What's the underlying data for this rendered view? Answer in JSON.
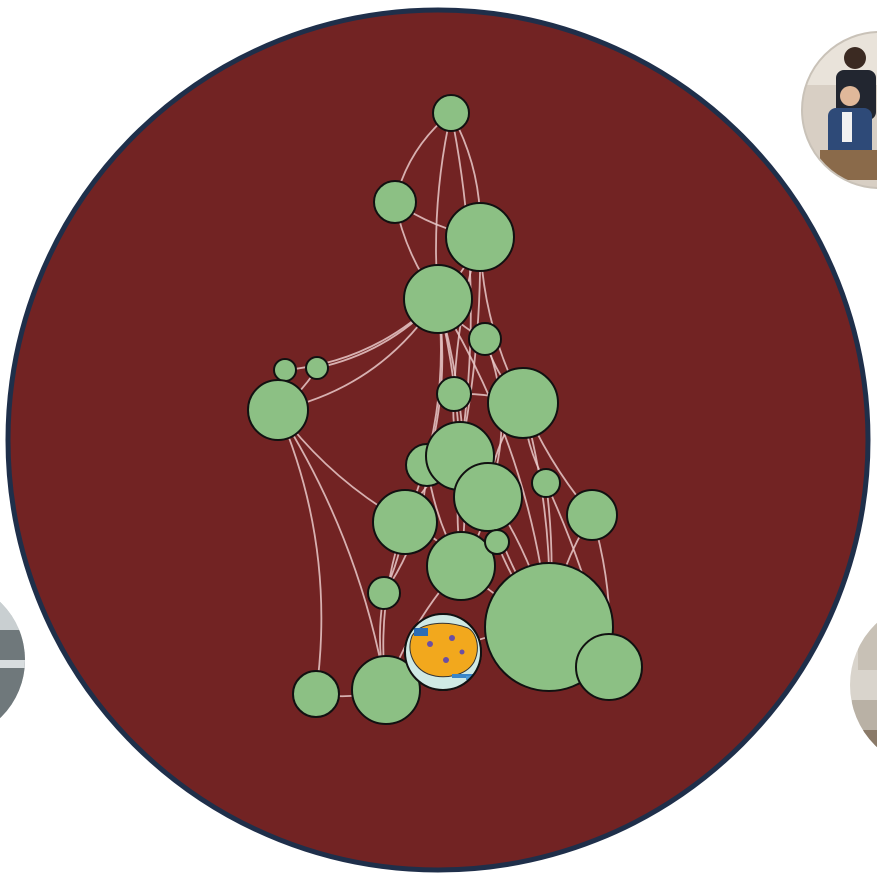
{
  "colors": {
    "background": "#ffffff",
    "main_disc_fill": "#722323",
    "main_disc_stroke": "#1f2f4a",
    "node_fill": "#8cc084",
    "node_stroke": "#111111",
    "edge_color": "#e9c9c9",
    "map_node_fill": "#f2a81d",
    "photo_frame_bg": "#cfc6bb"
  },
  "side_photos": [
    {
      "id": "photo-top-right",
      "depicts": "group-portrait-photo"
    },
    {
      "id": "photo-left",
      "depicts": "outdoor-grey-photo"
    },
    {
      "id": "photo-right",
      "depicts": "indoor-photo"
    }
  ],
  "network": {
    "node_count": 33,
    "edge_count": 55,
    "special_node": "map-illustration-node"
  }
}
